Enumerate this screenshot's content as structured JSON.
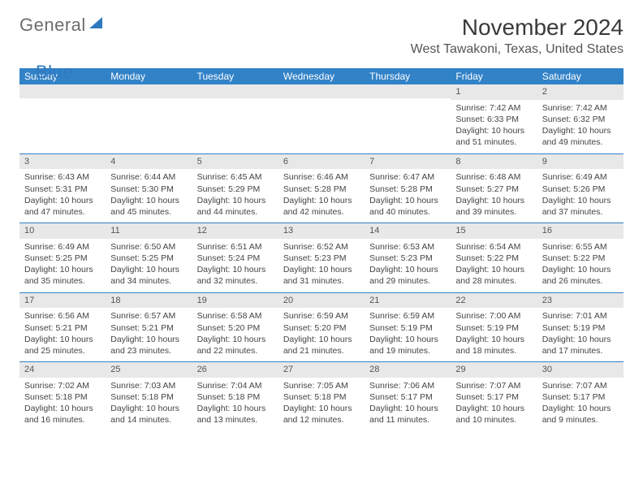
{
  "logo": {
    "word1": "General",
    "word2": "Blue"
  },
  "title": "November 2024",
  "location": "West Tawakoni, Texas, United States",
  "colors": {
    "header_bg": "#3282c8",
    "header_text": "#ffffff",
    "daynum_bg": "#e8e8e8",
    "border": "#3282c8",
    "logo_gray": "#6d6d6d",
    "logo_blue": "#2f79bf"
  },
  "day_headers": [
    "Sunday",
    "Monday",
    "Tuesday",
    "Wednesday",
    "Thursday",
    "Friday",
    "Saturday"
  ],
  "weeks": [
    [
      {},
      {},
      {},
      {},
      {},
      {
        "n": "1",
        "sr": "Sunrise: 7:42 AM",
        "ss": "Sunset: 6:33 PM",
        "d1": "Daylight: 10 hours",
        "d2": "and 51 minutes."
      },
      {
        "n": "2",
        "sr": "Sunrise: 7:42 AM",
        "ss": "Sunset: 6:32 PM",
        "d1": "Daylight: 10 hours",
        "d2": "and 49 minutes."
      }
    ],
    [
      {
        "n": "3",
        "sr": "Sunrise: 6:43 AM",
        "ss": "Sunset: 5:31 PM",
        "d1": "Daylight: 10 hours",
        "d2": "and 47 minutes."
      },
      {
        "n": "4",
        "sr": "Sunrise: 6:44 AM",
        "ss": "Sunset: 5:30 PM",
        "d1": "Daylight: 10 hours",
        "d2": "and 45 minutes."
      },
      {
        "n": "5",
        "sr": "Sunrise: 6:45 AM",
        "ss": "Sunset: 5:29 PM",
        "d1": "Daylight: 10 hours",
        "d2": "and 44 minutes."
      },
      {
        "n": "6",
        "sr": "Sunrise: 6:46 AM",
        "ss": "Sunset: 5:28 PM",
        "d1": "Daylight: 10 hours",
        "d2": "and 42 minutes."
      },
      {
        "n": "7",
        "sr": "Sunrise: 6:47 AM",
        "ss": "Sunset: 5:28 PM",
        "d1": "Daylight: 10 hours",
        "d2": "and 40 minutes."
      },
      {
        "n": "8",
        "sr": "Sunrise: 6:48 AM",
        "ss": "Sunset: 5:27 PM",
        "d1": "Daylight: 10 hours",
        "d2": "and 39 minutes."
      },
      {
        "n": "9",
        "sr": "Sunrise: 6:49 AM",
        "ss": "Sunset: 5:26 PM",
        "d1": "Daylight: 10 hours",
        "d2": "and 37 minutes."
      }
    ],
    [
      {
        "n": "10",
        "sr": "Sunrise: 6:49 AM",
        "ss": "Sunset: 5:25 PM",
        "d1": "Daylight: 10 hours",
        "d2": "and 35 minutes."
      },
      {
        "n": "11",
        "sr": "Sunrise: 6:50 AM",
        "ss": "Sunset: 5:25 PM",
        "d1": "Daylight: 10 hours",
        "d2": "and 34 minutes."
      },
      {
        "n": "12",
        "sr": "Sunrise: 6:51 AM",
        "ss": "Sunset: 5:24 PM",
        "d1": "Daylight: 10 hours",
        "d2": "and 32 minutes."
      },
      {
        "n": "13",
        "sr": "Sunrise: 6:52 AM",
        "ss": "Sunset: 5:23 PM",
        "d1": "Daylight: 10 hours",
        "d2": "and 31 minutes."
      },
      {
        "n": "14",
        "sr": "Sunrise: 6:53 AM",
        "ss": "Sunset: 5:23 PM",
        "d1": "Daylight: 10 hours",
        "d2": "and 29 minutes."
      },
      {
        "n": "15",
        "sr": "Sunrise: 6:54 AM",
        "ss": "Sunset: 5:22 PM",
        "d1": "Daylight: 10 hours",
        "d2": "and 28 minutes."
      },
      {
        "n": "16",
        "sr": "Sunrise: 6:55 AM",
        "ss": "Sunset: 5:22 PM",
        "d1": "Daylight: 10 hours",
        "d2": "and 26 minutes."
      }
    ],
    [
      {
        "n": "17",
        "sr": "Sunrise: 6:56 AM",
        "ss": "Sunset: 5:21 PM",
        "d1": "Daylight: 10 hours",
        "d2": "and 25 minutes."
      },
      {
        "n": "18",
        "sr": "Sunrise: 6:57 AM",
        "ss": "Sunset: 5:21 PM",
        "d1": "Daylight: 10 hours",
        "d2": "and 23 minutes."
      },
      {
        "n": "19",
        "sr": "Sunrise: 6:58 AM",
        "ss": "Sunset: 5:20 PM",
        "d1": "Daylight: 10 hours",
        "d2": "and 22 minutes."
      },
      {
        "n": "20",
        "sr": "Sunrise: 6:59 AM",
        "ss": "Sunset: 5:20 PM",
        "d1": "Daylight: 10 hours",
        "d2": "and 21 minutes."
      },
      {
        "n": "21",
        "sr": "Sunrise: 6:59 AM",
        "ss": "Sunset: 5:19 PM",
        "d1": "Daylight: 10 hours",
        "d2": "and 19 minutes."
      },
      {
        "n": "22",
        "sr": "Sunrise: 7:00 AM",
        "ss": "Sunset: 5:19 PM",
        "d1": "Daylight: 10 hours",
        "d2": "and 18 minutes."
      },
      {
        "n": "23",
        "sr": "Sunrise: 7:01 AM",
        "ss": "Sunset: 5:19 PM",
        "d1": "Daylight: 10 hours",
        "d2": "and 17 minutes."
      }
    ],
    [
      {
        "n": "24",
        "sr": "Sunrise: 7:02 AM",
        "ss": "Sunset: 5:18 PM",
        "d1": "Daylight: 10 hours",
        "d2": "and 16 minutes."
      },
      {
        "n": "25",
        "sr": "Sunrise: 7:03 AM",
        "ss": "Sunset: 5:18 PM",
        "d1": "Daylight: 10 hours",
        "d2": "and 14 minutes."
      },
      {
        "n": "26",
        "sr": "Sunrise: 7:04 AM",
        "ss": "Sunset: 5:18 PM",
        "d1": "Daylight: 10 hours",
        "d2": "and 13 minutes."
      },
      {
        "n": "27",
        "sr": "Sunrise: 7:05 AM",
        "ss": "Sunset: 5:18 PM",
        "d1": "Daylight: 10 hours",
        "d2": "and 12 minutes."
      },
      {
        "n": "28",
        "sr": "Sunrise: 7:06 AM",
        "ss": "Sunset: 5:17 PM",
        "d1": "Daylight: 10 hours",
        "d2": "and 11 minutes."
      },
      {
        "n": "29",
        "sr": "Sunrise: 7:07 AM",
        "ss": "Sunset: 5:17 PM",
        "d1": "Daylight: 10 hours",
        "d2": "and 10 minutes."
      },
      {
        "n": "30",
        "sr": "Sunrise: 7:07 AM",
        "ss": "Sunset: 5:17 PM",
        "d1": "Daylight: 10 hours",
        "d2": "and 9 minutes."
      }
    ]
  ]
}
